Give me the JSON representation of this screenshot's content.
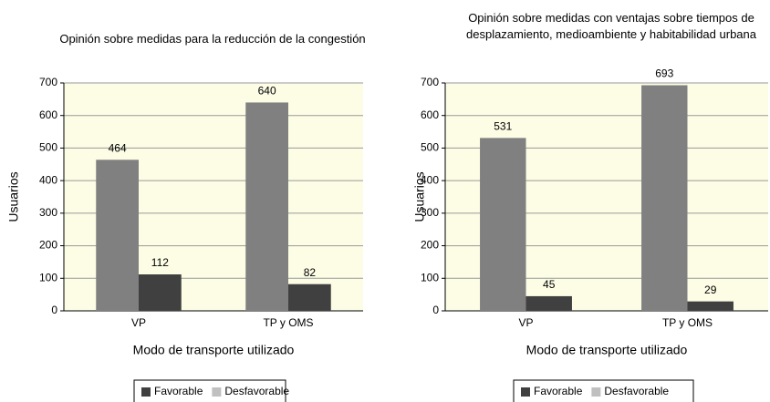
{
  "chart_data": [
    {
      "type": "bar",
      "title": "Opinión sobre medidas para la reducción de la congestión",
      "xlabel": "Modo de transporte utilizado",
      "ylabel": "Usuarios",
      "categories": [
        "VP",
        "TP y OMS"
      ],
      "series": [
        {
          "name": "Desfavorable",
          "color": "#808080",
          "values": [
            464,
            640
          ]
        },
        {
          "name": "Favorable",
          "color": "#404040",
          "values": [
            112,
            82
          ]
        }
      ],
      "ylim": [
        0,
        700
      ],
      "yticks": [
        0,
        100,
        200,
        300,
        400,
        500,
        600,
        700
      ],
      "grid": true
    },
    {
      "type": "bar",
      "title": "Opinión sobre medidas con ventajas sobre tiempos de desplazamiento, medioambiente y habitabilidad urbana",
      "xlabel": "Modo de transporte utilizado",
      "ylabel": "Usuarios",
      "categories": [
        "VP",
        "TP y OMS"
      ],
      "series": [
        {
          "name": "Desfavorable",
          "color": "#808080",
          "values": [
            531,
            693
          ]
        },
        {
          "name": "Favorable",
          "color": "#404040",
          "values": [
            45,
            29
          ]
        }
      ],
      "ylim": [
        0,
        700
      ],
      "yticks": [
        0,
        100,
        200,
        300,
        400,
        500,
        600,
        700
      ],
      "grid": true
    }
  ]
}
